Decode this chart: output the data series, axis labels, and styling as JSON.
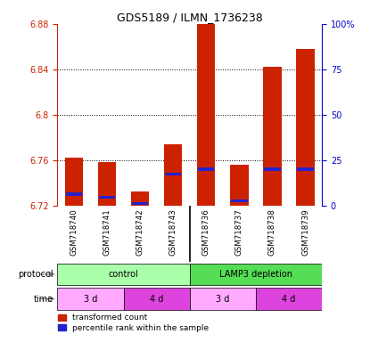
{
  "title": "GDS5189 / ILMN_1736238",
  "samples": [
    "GSM718740",
    "GSM718741",
    "GSM718742",
    "GSM718743",
    "GSM718736",
    "GSM718737",
    "GSM718738",
    "GSM718739"
  ],
  "red_values": [
    6.762,
    6.758,
    6.732,
    6.774,
    6.882,
    6.756,
    6.842,
    6.858
  ],
  "blue_values": [
    6.73,
    6.727,
    6.722,
    6.748,
    6.752,
    6.724,
    6.752,
    6.752
  ],
  "ymin": 6.72,
  "ymax": 6.88,
  "yticks": [
    6.72,
    6.76,
    6.8,
    6.84,
    6.88
  ],
  "ytick_labels": [
    "6.72",
    "6.76",
    "6.8",
    "6.84",
    "6.88"
  ],
  "right_yticks": [
    0,
    25,
    50,
    75,
    100
  ],
  "right_ytick_labels": [
    "0",
    "25",
    "50",
    "75",
    "100%"
  ],
  "protocol_labels": [
    "control",
    "LAMP3 depletion"
  ],
  "protocol_colors": [
    "#aaffaa",
    "#55dd55"
  ],
  "time_labels": [
    "3 d",
    "4 d",
    "3 d",
    "4 d"
  ],
  "time_ranges": [
    [
      0,
      2
    ],
    [
      2,
      4
    ],
    [
      4,
      6
    ],
    [
      6,
      8
    ]
  ],
  "time_colors": [
    "#ffaaff",
    "#dd44dd",
    "#ffaaff",
    "#dd44dd"
  ],
  "legend_red": "transformed count",
  "legend_blue": "percentile rank within the sample",
  "bar_color_red": "#cc2200",
  "bar_color_blue": "#2222cc",
  "left_axis_color": "#cc2200",
  "right_axis_color": "#0000cc",
  "xtick_bg": "#d0d0d0"
}
